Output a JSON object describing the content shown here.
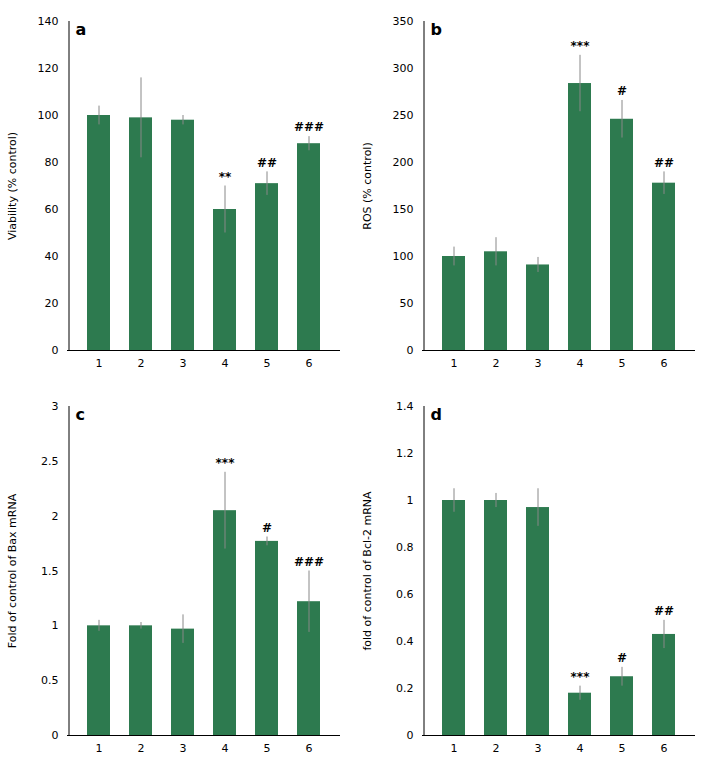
{
  "chart_data": [
    {
      "type": "bar",
      "title": "a",
      "ylabel": "Viability (% control)",
      "categories": [
        "1",
        "2",
        "3",
        "4",
        "5",
        "6"
      ],
      "values": [
        100,
        99,
        98,
        60,
        71,
        88
      ],
      "errors": [
        4,
        17,
        2,
        10,
        5,
        3
      ],
      "annotations": [
        null,
        null,
        null,
        "**",
        "##",
        "###"
      ],
      "color": "#2d7a4f",
      "ylim": [
        0,
        140
      ],
      "yticks": [
        0,
        20,
        40,
        60,
        80,
        100,
        120,
        140
      ],
      "grid": false
    },
    {
      "type": "bar",
      "title": "b",
      "ylabel": "ROS (% control)",
      "categories": [
        "1",
        "2",
        "3",
        "4",
        "5",
        "6"
      ],
      "values": [
        100,
        105,
        91,
        284,
        246,
        178
      ],
      "errors": [
        10,
        15,
        8,
        30,
        20,
        12
      ],
      "annotations": [
        null,
        null,
        null,
        "***",
        "#",
        "##"
      ],
      "color": "#2d7a4f",
      "ylim": [
        0,
        350
      ],
      "yticks": [
        0,
        50,
        100,
        150,
        200,
        250,
        300,
        350
      ],
      "grid": false
    },
    {
      "type": "bar",
      "title": "c",
      "ylabel": "Fold of control of Bax mRNA",
      "categories": [
        "1",
        "2",
        "3",
        "4",
        "5",
        "6"
      ],
      "values": [
        1.0,
        1.0,
        0.97,
        2.05,
        1.77,
        1.22
      ],
      "errors": [
        0.05,
        0.03,
        0.13,
        0.35,
        0.04,
        0.28
      ],
      "annotations": [
        null,
        null,
        null,
        "***",
        "#",
        "###"
      ],
      "color": "#2d7a4f",
      "ylim": [
        0,
        3
      ],
      "yticks": [
        0,
        0.5,
        1,
        1.5,
        2,
        2.5,
        3
      ],
      "grid": false
    },
    {
      "type": "bar",
      "title": "d",
      "ylabel": "fold of control of Bcl-2 mRNA",
      "categories": [
        "1",
        "2",
        "3",
        "4",
        "5",
        "6"
      ],
      "values": [
        1.0,
        1.0,
        0.97,
        0.18,
        0.25,
        0.43
      ],
      "errors": [
        0.05,
        0.03,
        0.08,
        0.03,
        0.04,
        0.06
      ],
      "annotations": [
        null,
        null,
        null,
        "***",
        "#",
        "##"
      ],
      "color": "#2d7a4f",
      "ylim": [
        0,
        1.4
      ],
      "yticks": [
        0,
        0.2,
        0.4,
        0.6,
        0.8,
        1,
        1.2,
        1.4
      ],
      "grid": false
    }
  ]
}
